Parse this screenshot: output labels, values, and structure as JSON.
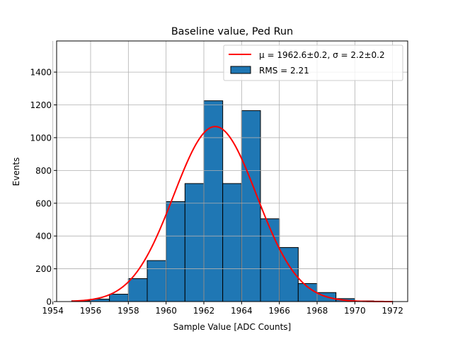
{
  "chart_data": {
    "type": "bar",
    "title": "Baseline value, Ped Run",
    "xlabel": "Sample Value [ADC Counts]",
    "ylabel": "Events",
    "xlim": [
      1954.2,
      1972.8
    ],
    "ylim": [
      0,
      1590
    ],
    "xticks": [
      1954,
      1956,
      1958,
      1960,
      1962,
      1964,
      1966,
      1968,
      1970,
      1972
    ],
    "yticks": [
      0,
      200,
      400,
      600,
      800,
      1000,
      1200,
      1400
    ],
    "grid": true,
    "legend_position": "top-right",
    "histogram": {
      "bin_edges": [
        1955,
        1956,
        1957,
        1958,
        1959,
        1960,
        1961,
        1962,
        1963,
        1964,
        1965,
        1966,
        1967,
        1968,
        1969,
        1970,
        1971,
        1972
      ],
      "counts": [
        5,
        15,
        45,
        140,
        250,
        610,
        720,
        1225,
        720,
        1165,
        505,
        330,
        110,
        55,
        18,
        4,
        2
      ],
      "color": "#1f77b4",
      "edge_color": "#000000",
      "legend_label": "RMS = 2.21"
    },
    "fit": {
      "type": "gaussian",
      "mu": 1962.6,
      "sigma": 2.2,
      "amplitude": 1068,
      "x_range": [
        1955,
        1972
      ],
      "color": "#ff0000",
      "legend_label": "μ = 1962.6±0.2, σ = 2.2±0.2"
    }
  }
}
